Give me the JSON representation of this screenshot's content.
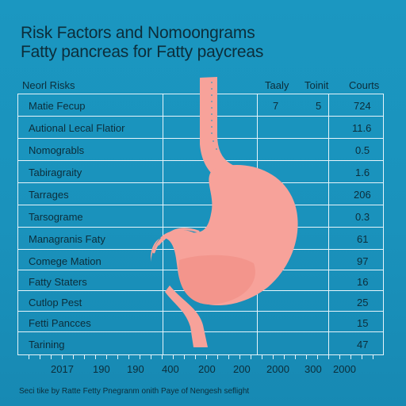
{
  "title": "Risk Factors and Nomoongrams",
  "subtitle": "Fatty pancreas for Fatty paycreas",
  "columns": [
    "Neorl Risks",
    "Taaly",
    "Toinit",
    "Courts"
  ],
  "rows": [
    {
      "label": "Matie Fecup",
      "c1": "7",
      "c2": "5",
      "c3": "724"
    },
    {
      "label": "Autional Lecal Flatior",
      "c1": "",
      "c2": "",
      "c3": "11.6"
    },
    {
      "label": "Nomograbls",
      "c1": "",
      "c2": "",
      "c3": "0.5"
    },
    {
      "label": "Tabiragraity",
      "c1": "",
      "c2": "",
      "c3": "1.6"
    },
    {
      "label": "Tarrages",
      "c1": "",
      "c2": "",
      "c3": "206"
    },
    {
      "label": "Tarsograme",
      "c1": "",
      "c2": "",
      "c3": "0.3"
    },
    {
      "label": "Managranis Faty",
      "c1": "",
      "c2": "",
      "c3": "61"
    },
    {
      "label": "Comege Mation",
      "c1": "",
      "c2": "",
      "c3": "97"
    },
    {
      "label": "Fatty Staters",
      "c1": "",
      "c2": "",
      "c3": "16"
    },
    {
      "label": "Cutlop Pest",
      "c1": "",
      "c2": "",
      "c3": "25"
    },
    {
      "label": "Fetti Pancces",
      "c1": "",
      "c2": "",
      "c3": "15"
    },
    {
      "label": "Tarining",
      "c1": "",
      "c2": "",
      "c3": "47"
    }
  ],
  "x_labels": [
    "2017",
    "190",
    "190",
    "400",
    "200",
    "200",
    "2000",
    "300",
    "2000"
  ],
  "footnote": "Seci tike by Ratte Fetty Pnegranm onith Paye of Nengesh seflight",
  "colors": {
    "background": "#1b97c1",
    "stomach": "#f7a29a",
    "grid": "#e6f4fa",
    "text": "#0c2d3a"
  }
}
